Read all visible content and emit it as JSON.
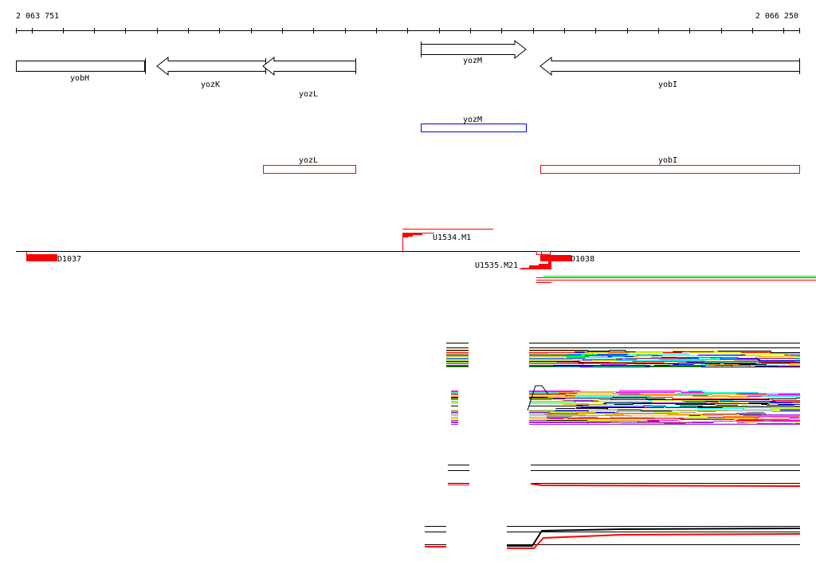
{
  "ruler": {
    "start_label": "2 063 751",
    "end_label": "2 066 250"
  },
  "genes": {
    "yobH": "yobH",
    "yozK": "yozK",
    "yozL": "yozL",
    "yozM": "yozM",
    "yobI": "yobI"
  },
  "annotations": {
    "yozM_blue": "yozM",
    "yozL_red": "yozL",
    "yobI_red": "yobI"
  },
  "features": {
    "u1534": "U1534.M1",
    "d1037": "D1037",
    "u1535": "U1535.M21",
    "d1038": "D1038"
  },
  "colors": {
    "feature_red": "#ff0000",
    "annotation_blue": "#0000ff",
    "track_palette": [
      "#000000",
      "#ff0000",
      "#00ff00",
      "#0000ff",
      "#00ffff",
      "#ff00ff",
      "#ffa500",
      "#ccff00",
      "#999999",
      "#8a2be2",
      "#ffffff"
    ]
  }
}
